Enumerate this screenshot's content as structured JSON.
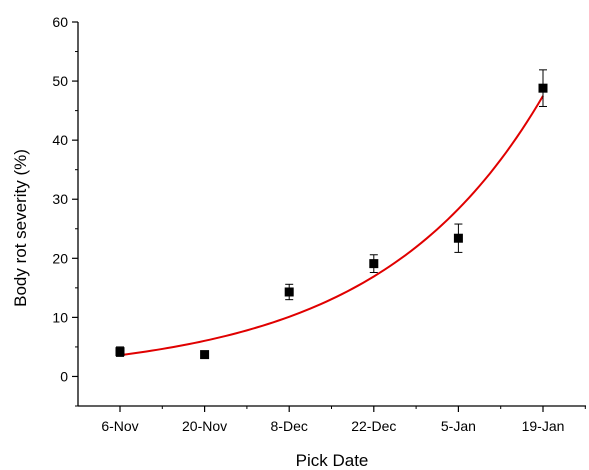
{
  "chart_data": {
    "type": "scatter",
    "title": "",
    "xlabel": "Pick Date",
    "ylabel": "Body rot severity (%)",
    "categories": [
      "6-Nov",
      "20-Nov",
      "8-Dec",
      "22-Dec",
      "5-Jan",
      "19-Jan"
    ],
    "ylim": [
      -5,
      60
    ],
    "yticks": [
      0,
      10,
      20,
      30,
      40,
      50,
      60
    ],
    "grid": false,
    "legend": "none",
    "series": [
      {
        "values": [
          4.2,
          3.7,
          14.3,
          19.1,
          23.4,
          48.8
        ],
        "errors": [
          0.8,
          0.3,
          1.3,
          1.5,
          2.4,
          3.1
        ],
        "marker": "square",
        "color": "#000000"
      }
    ],
    "fit": {
      "type": "exponential",
      "color": "#e00000",
      "values": [
        3.6,
        6.0,
        10.2,
        17.0,
        28.6,
        47.5
      ]
    }
  }
}
